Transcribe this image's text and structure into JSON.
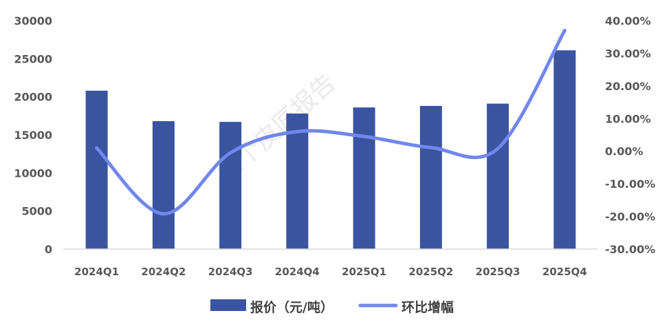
{
  "chart_data": {
    "type": "bar+line",
    "categories": [
      "2024Q1",
      "2024Q2",
      "2024Q3",
      "2024Q4",
      "2025Q1",
      "2025Q2",
      "2025Q3",
      "2025Q4"
    ],
    "series": [
      {
        "name": "报价（元/吨）",
        "type": "bar",
        "axis": "left",
        "color": "#3A54A0",
        "values": [
          20800,
          16800,
          16700,
          17800,
          18600,
          18800,
          19100,
          26100
        ]
      },
      {
        "name": "环比增幅",
        "type": "line",
        "axis": "right",
        "color": "#7087EC",
        "values": [
          1.0,
          -19.2,
          -0.5,
          6.0,
          4.5,
          1.1,
          0.8,
          37.0
        ]
      }
    ],
    "y_left": {
      "min": 0,
      "max": 30000,
      "ticks": [
        0,
        5000,
        10000,
        15000,
        20000,
        25000,
        30000
      ],
      "tick_labels": [
        "0",
        "5000",
        "10000",
        "15000",
        "20000",
        "25000",
        "30000"
      ]
    },
    "y_right": {
      "min": -30,
      "max": 40,
      "ticks": [
        -30,
        -20,
        -10,
        0,
        10,
        20,
        30,
        40
      ],
      "tick_labels": [
        "-30.00%",
        "-20.00%",
        "-10.00%",
        "0.00%",
        "10.00%",
        "20.00%",
        "30.00%",
        "40.00%"
      ]
    },
    "grid": false,
    "legend": "bottom",
    "title": "",
    "xlabel": "",
    "ylabel": ""
  },
  "watermark": "三个皮匠报告"
}
